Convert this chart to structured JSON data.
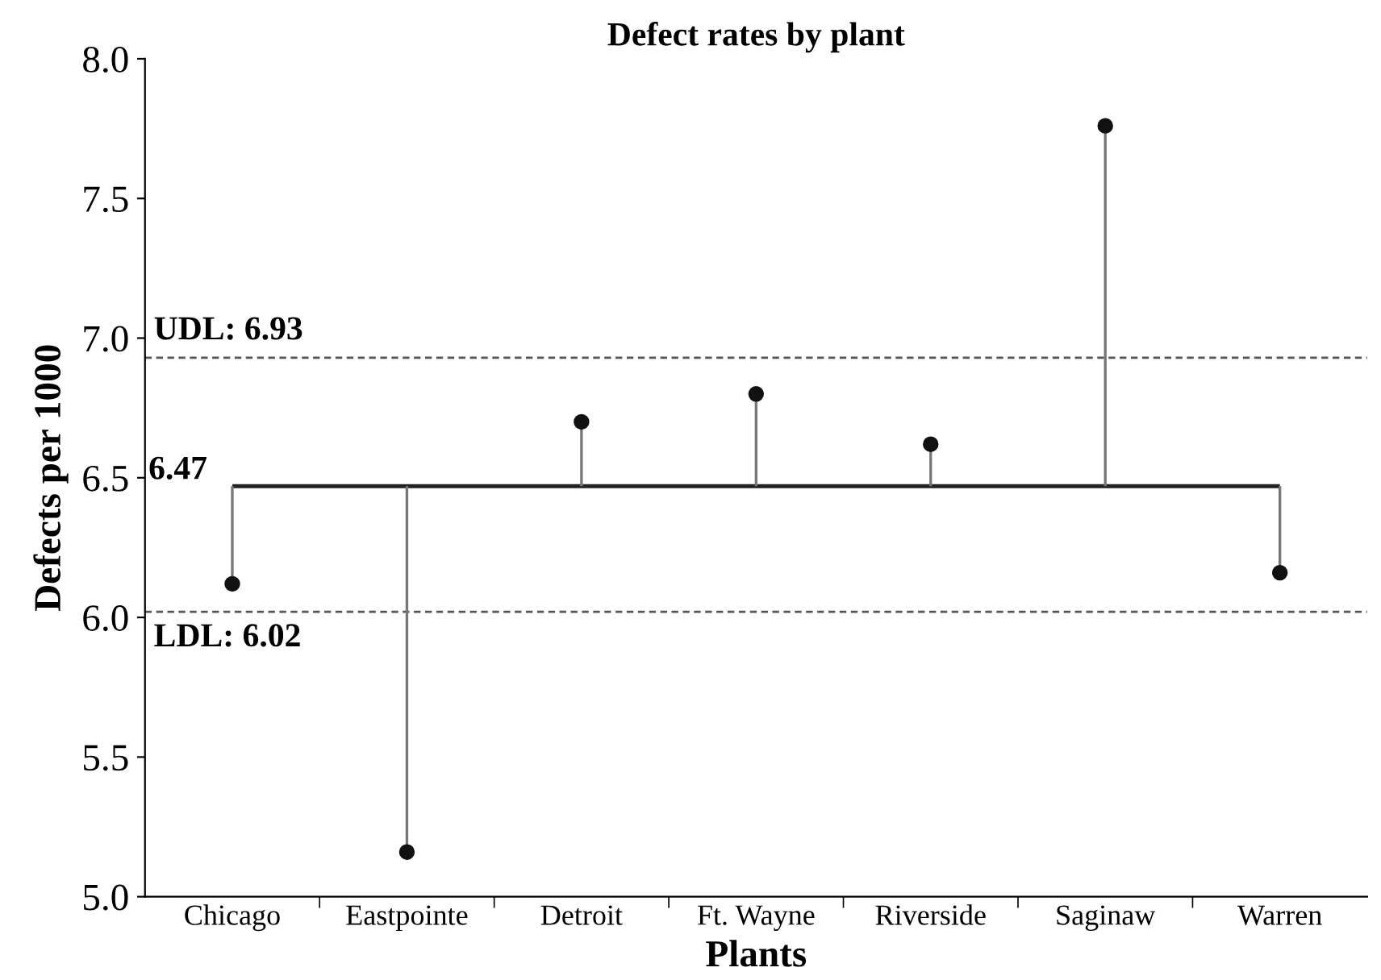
{
  "chart_data": {
    "type": "lollipop",
    "title": "Defect rates by plant",
    "xlabel": "Plants",
    "ylabel": "Defects per 1000",
    "categories": [
      "Chicago",
      "Eastpointe",
      "Detroit",
      "Ft. Wayne",
      "Riverside",
      "Saginaw",
      "Warren"
    ],
    "values": [
      6.12,
      5.16,
      6.7,
      6.8,
      6.62,
      7.76,
      6.16
    ],
    "errors": [
      [
        6.12,
        6.47
      ],
      [
        5.16,
        6.47
      ],
      [
        6.47,
        6.7
      ],
      [
        6.47,
        6.8
      ],
      [
        6.47,
        6.62
      ],
      [
        6.47,
        7.76
      ],
      [
        6.16,
        6.47
      ]
    ],
    "color": "#111111",
    "marker": "circle",
    "ylim": [
      5.0,
      8.0
    ],
    "yticks": [
      {
        "value": 5.0,
        "label": "5.0"
      },
      {
        "value": 5.5,
        "label": "5.5"
      },
      {
        "value": 6.0,
        "label": "6.0"
      },
      {
        "value": 6.5,
        "label": "6.5"
      },
      {
        "value": 7.0,
        "label": "7.0"
      },
      {
        "value": 7.5,
        "label": "7.5"
      },
      {
        "value": 8.0,
        "label": "8.0"
      }
    ],
    "ref_lines": [
      {
        "axis": "y",
        "value": 6.93,
        "label": "UDL: 6.93",
        "color": "#555555",
        "line_style": "dashed"
      },
      {
        "axis": "y",
        "value": 6.47,
        "label": "6.47",
        "color": "#222222",
        "line_style": "solid"
      },
      {
        "axis": "y",
        "value": 6.02,
        "label": "LDL: 6.02",
        "color": "#555555",
        "line_style": "dashed"
      }
    ],
    "grid": false
  }
}
